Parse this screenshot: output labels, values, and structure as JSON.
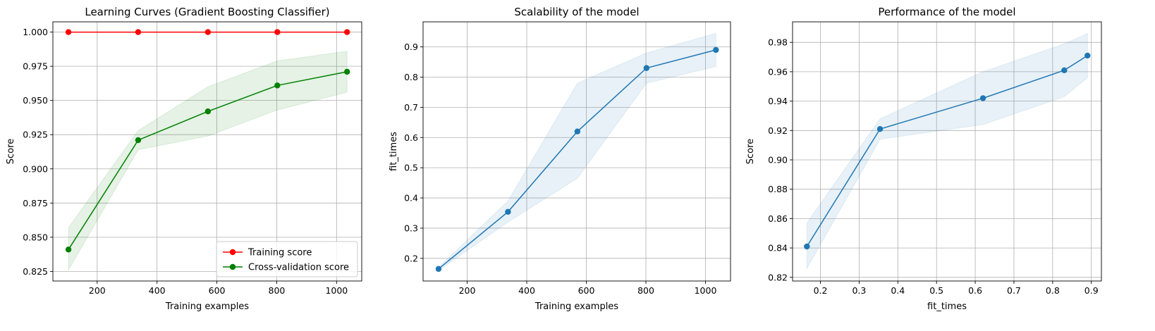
{
  "charts": [
    {
      "type": "line",
      "title": "Learning Curves (Gradient Boosting Classifier)",
      "xlabel": "Training examples",
      "ylabel": "Score",
      "xlim": [
        52,
        1084
      ],
      "ylim": [
        0.818,
        1.0075
      ],
      "xticks": [
        200,
        400,
        600,
        800,
        1000
      ],
      "yticks": [
        0.825,
        0.85,
        0.875,
        0.9,
        0.925,
        0.95,
        0.975,
        1.0
      ],
      "ytick_decimals": 3,
      "grid": true,
      "legend": "lower-right",
      "series": [
        {
          "name": "Training score",
          "color": "#ff0000",
          "x": [
            104,
            337,
            570,
            802,
            1035
          ],
          "y": [
            1.0,
            1.0,
            1.0,
            1.0,
            1.0
          ],
          "band_low": [
            1.0,
            1.0,
            1.0,
            1.0,
            1.0
          ],
          "band_high": [
            1.0,
            1.0,
            1.0,
            1.0,
            1.0
          ]
        },
        {
          "name": "Cross-validation score",
          "color": "#008000",
          "x": [
            104,
            337,
            570,
            802,
            1035
          ],
          "y": [
            0.841,
            0.921,
            0.942,
            0.961,
            0.971
          ],
          "band_low": [
            0.826,
            0.914,
            0.924,
            0.943,
            0.956
          ],
          "band_high": [
            0.857,
            0.928,
            0.96,
            0.979,
            0.986
          ]
        }
      ]
    },
    {
      "type": "line",
      "title": "Scalability of the model",
      "xlabel": "Training examples",
      "ylabel": "fit_times",
      "xlim": [
        52,
        1084
      ],
      "ylim": [
        0.125,
        0.983
      ],
      "xticks": [
        200,
        400,
        600,
        800,
        1000
      ],
      "yticks": [
        0.2,
        0.3,
        0.4,
        0.5,
        0.6,
        0.7,
        0.8,
        0.9
      ],
      "ytick_decimals": 1,
      "grid": true,
      "legend": "none",
      "series": [
        {
          "name": "",
          "color": "#1f77b4",
          "x": [
            104,
            337,
            570,
            802,
            1035
          ],
          "y": [
            0.165,
            0.354,
            0.62,
            0.83,
            0.89
          ],
          "band_low": [
            0.16,
            0.32,
            0.465,
            0.78,
            0.835
          ],
          "band_high": [
            0.17,
            0.39,
            0.78,
            0.88,
            0.945
          ]
        }
      ]
    },
    {
      "type": "line",
      "title": "Performance of the model",
      "xlabel": "fit_times",
      "ylabel": "Score",
      "xlim": [
        0.128,
        0.926
      ],
      "ylim": [
        0.8175,
        0.994
      ],
      "xticks": [
        0.2,
        0.3,
        0.4,
        0.5,
        0.6,
        0.7,
        0.8,
        0.9
      ],
      "yticks": [
        0.82,
        0.84,
        0.86,
        0.88,
        0.9,
        0.92,
        0.94,
        0.96,
        0.98
      ],
      "ytick_decimals": 2,
      "grid": true,
      "legend": "none",
      "series": [
        {
          "name": "",
          "color": "#1f77b4",
          "x": [
            0.165,
            0.354,
            0.62,
            0.83,
            0.89
          ],
          "y": [
            0.841,
            0.921,
            0.942,
            0.961,
            0.971
          ],
          "band_low": [
            0.826,
            0.914,
            0.924,
            0.943,
            0.956
          ],
          "band_high": [
            0.857,
            0.928,
            0.96,
            0.979,
            0.986
          ]
        }
      ]
    }
  ]
}
